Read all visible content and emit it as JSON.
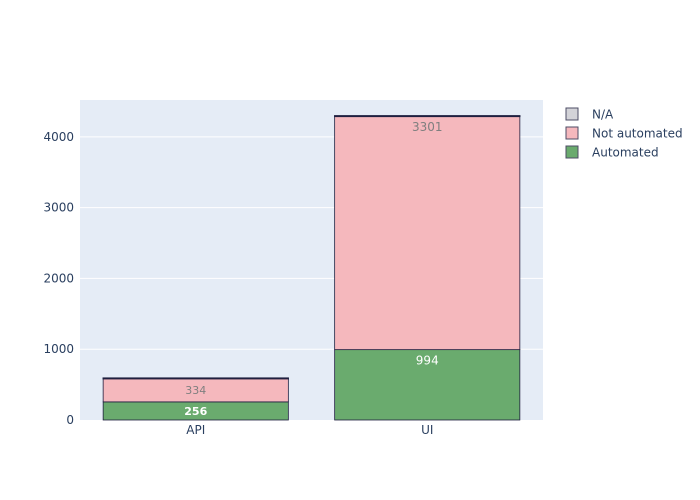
{
  "chart_data": {
    "type": "bar",
    "barmode": "stack",
    "categories": [
      "API",
      "UI"
    ],
    "series": [
      {
        "name": "Automated",
        "values": [
          256,
          994
        ],
        "color": "#6aab6e",
        "label_color": "#ffffff"
      },
      {
        "name": "Not automated",
        "values": [
          334,
          3301
        ],
        "color": "#f5b8bd",
        "label_color": "#7f7f7f"
      },
      {
        "name": "N/A",
        "values": [
          3,
          3
        ],
        "color": "#d3d3d8",
        "label_color": "#7f7f7f"
      }
    ],
    "legend_order": [
      "N/A",
      "Not automated",
      "Automated"
    ],
    "yticks": [
      0,
      1000,
      2000,
      3000,
      4000
    ],
    "ylim": [
      0,
      4520
    ],
    "grid": true,
    "legend_position": "top-right",
    "plot_background": "#e5ecf6",
    "outline_color": "#1f1f3f"
  }
}
